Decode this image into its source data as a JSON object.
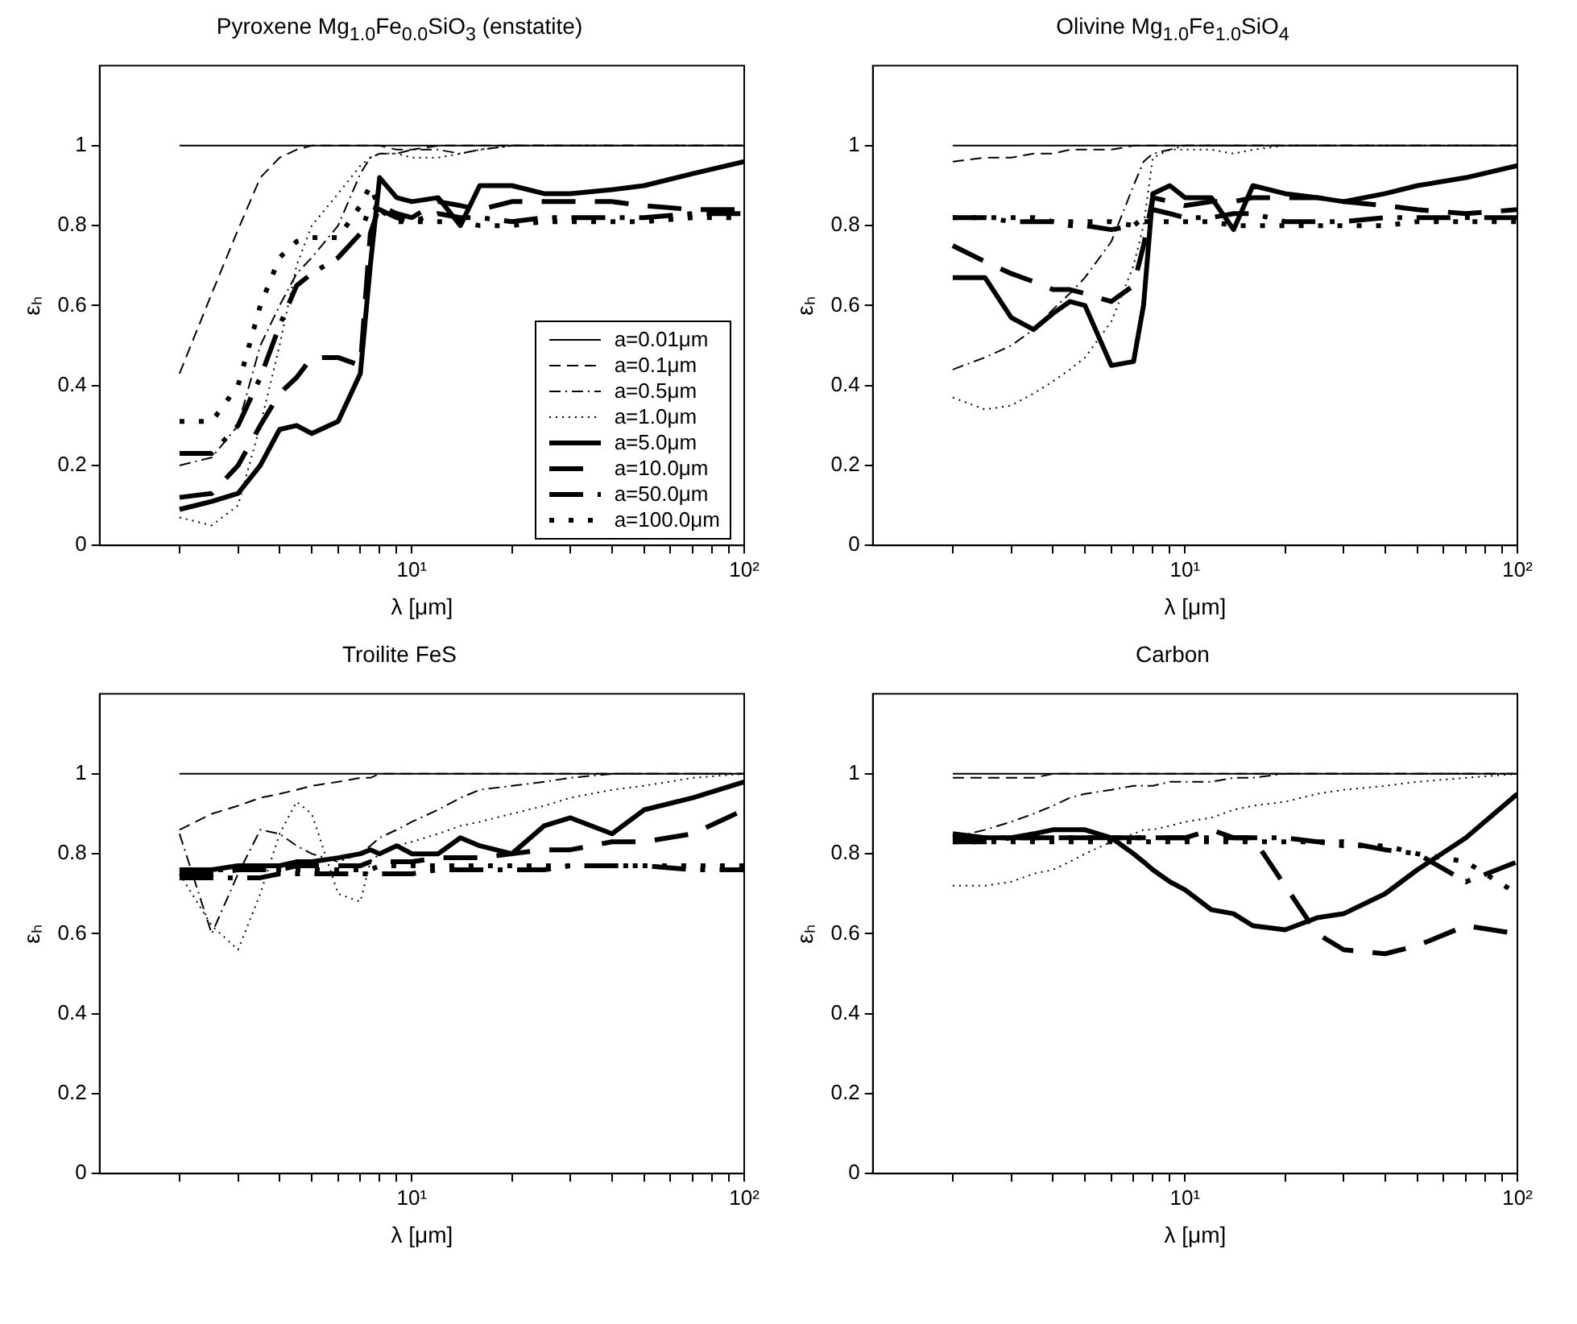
{
  "chart_data": [
    {
      "type": "line",
      "title": "Pyroxene Mg$_{1.0}$Fe$_{0.0}$SiO$_{3}$ (enstatite)",
      "xlabel": "λ [μm]",
      "ylabel": "εₕ",
      "log": "x",
      "grid": false,
      "legend": "bottom right",
      "x": [
        2,
        2.5,
        3,
        3.5,
        4,
        4.5,
        5,
        6,
        7,
        7.5,
        8,
        9,
        10,
        12,
        14,
        16,
        20,
        25,
        30,
        40,
        50,
        70,
        100
      ],
      "xlim": [
        1.15,
        100
      ],
      "xticks": [
        {
          "value": 2,
          "label": null
        },
        {
          "value": 3,
          "label": null
        },
        {
          "value": 4,
          "label": null
        },
        {
          "value": 5,
          "label": null
        },
        {
          "value": 6,
          "label": null
        },
        {
          "value": 7,
          "label": null
        },
        {
          "value": 8,
          "label": null
        },
        {
          "value": 9,
          "label": null
        },
        {
          "value": 10,
          "label": "10¹"
        },
        {
          "value": 20,
          "label": null
        },
        {
          "value": 30,
          "label": null
        },
        {
          "value": 40,
          "label": null
        },
        {
          "value": 50,
          "label": null
        },
        {
          "value": 60,
          "label": null
        },
        {
          "value": 70,
          "label": null
        },
        {
          "value": 80,
          "label": null
        },
        {
          "value": 90,
          "label": null
        },
        {
          "value": 100,
          "label": "10²"
        }
      ],
      "ylim": [
        0,
        1.2
      ],
      "yticks": [
        0,
        0.2,
        0.4,
        0.6,
        0.8,
        1
      ],
      "series": [
        {
          "name": "a=0.01μm",
          "color": "#000000",
          "line_style": "solid",
          "values": [
            1,
            1,
            1,
            1,
            1,
            1,
            1,
            1,
            1,
            1,
            1,
            1,
            1,
            1,
            1,
            1,
            1,
            1,
            1,
            1,
            1,
            1,
            1
          ]
        },
        {
          "name": "a=0.1μm",
          "color": "#000000",
          "line_style": "dashed",
          "values": [
            0.43,
            0.63,
            0.79,
            0.92,
            0.97,
            0.99,
            1,
            1,
            1,
            1,
            1,
            0.99,
            0.99,
            1,
            1,
            1,
            1,
            1,
            1,
            1,
            1,
            1,
            1
          ]
        },
        {
          "name": "a=0.5μm",
          "color": "#000000",
          "line_style": "dashdot",
          "values": [
            0.2,
            0.22,
            0.3,
            0.5,
            0.6,
            0.68,
            0.72,
            0.8,
            0.93,
            0.97,
            0.98,
            0.98,
            0.99,
            0.99,
            0.98,
            0.99,
            1,
            1,
            1,
            1,
            1,
            1,
            1
          ]
        },
        {
          "name": "a=1.0μm",
          "color": "#000000",
          "line_style": "dotted",
          "values": [
            0.07,
            0.05,
            0.1,
            0.3,
            0.5,
            0.7,
            0.8,
            0.88,
            0.95,
            0.97,
            0.98,
            0.98,
            0.97,
            0.97,
            0.98,
            0.99,
            1,
            1,
            1,
            1,
            1,
            1,
            1
          ]
        },
        {
          "name": "a=5.0μm",
          "color": "#000000",
          "line_style": "solid",
          "values": [
            0.09,
            0.11,
            0.13,
            0.2,
            0.29,
            0.3,
            0.28,
            0.31,
            0.43,
            0.7,
            0.92,
            0.87,
            0.86,
            0.87,
            0.8,
            0.9,
            0.9,
            0.88,
            0.88,
            0.89,
            0.9,
            0.93,
            0.96
          ]
        },
        {
          "name": "a=10.0μm",
          "color": "#000000",
          "line_style": "dashed",
          "values": [
            0.12,
            0.13,
            0.2,
            0.3,
            0.38,
            0.42,
            0.47,
            0.47,
            0.45,
            0.78,
            0.85,
            0.83,
            0.82,
            0.86,
            0.85,
            0.84,
            0.86,
            0.86,
            0.86,
            0.86,
            0.85,
            0.84,
            0.84
          ]
        },
        {
          "name": "a=50.0μm",
          "color": "#000000",
          "line_style": "dashdot",
          "values": [
            0.23,
            0.23,
            0.3,
            0.42,
            0.55,
            0.65,
            0.68,
            0.72,
            0.78,
            0.85,
            0.84,
            0.82,
            0.81,
            0.83,
            0.82,
            0.82,
            0.81,
            0.82,
            0.82,
            0.82,
            0.82,
            0.83,
            0.83
          ]
        },
        {
          "name": "a=100.0μm",
          "color": "#000000",
          "line_style": "dotted",
          "values": [
            0.31,
            0.31,
            0.4,
            0.6,
            0.72,
            0.76,
            0.77,
            0.77,
            0.85,
            0.9,
            0.84,
            0.81,
            0.81,
            0.81,
            0.81,
            0.8,
            0.8,
            0.81,
            0.81,
            0.81,
            0.81,
            0.82,
            0.82
          ]
        }
      ]
    },
    {
      "type": "line",
      "title": "Olivine Mg$_{1.0}$Fe$_{1.0}$SiO$_{4}$",
      "xlabel": "λ [μm]",
      "ylabel": "εₕ",
      "log": "x",
      "grid": false,
      "x": [
        2,
        2.5,
        3,
        3.5,
        4,
        4.5,
        5,
        6,
        7,
        7.5,
        8,
        9,
        10,
        12,
        14,
        16,
        20,
        25,
        30,
        40,
        50,
        70,
        100
      ],
      "xlim": [
        1.15,
        100
      ],
      "xticks": [
        {
          "value": 2,
          "label": null
        },
        {
          "value": 3,
          "label": null
        },
        {
          "value": 4,
          "label": null
        },
        {
          "value": 5,
          "label": null
        },
        {
          "value": 6,
          "label": null
        },
        {
          "value": 7,
          "label": null
        },
        {
          "value": 8,
          "label": null
        },
        {
          "value": 9,
          "label": null
        },
        {
          "value": 10,
          "label": "10¹"
        },
        {
          "value": 20,
          "label": null
        },
        {
          "value": 30,
          "label": null
        },
        {
          "value": 40,
          "label": null
        },
        {
          "value": 50,
          "label": null
        },
        {
          "value": 60,
          "label": null
        },
        {
          "value": 70,
          "label": null
        },
        {
          "value": 80,
          "label": null
        },
        {
          "value": 90,
          "label": null
        },
        {
          "value": 100,
          "label": "10²"
        }
      ],
      "ylim": [
        0,
        1.2
      ],
      "yticks": [
        0,
        0.2,
        0.4,
        0.6,
        0.8,
        1
      ],
      "series": [
        {
          "color": "#000000",
          "line_style": "solid",
          "values": [
            1,
            1,
            1,
            1,
            1,
            1,
            1,
            1,
            1,
            1,
            1,
            1,
            1,
            1,
            1,
            1,
            1,
            1,
            1,
            1,
            1,
            1,
            1
          ]
        },
        {
          "color": "#000000",
          "line_style": "dashed",
          "values": [
            0.96,
            0.97,
            0.97,
            0.98,
            0.98,
            0.99,
            0.99,
            0.99,
            1,
            1,
            1,
            1,
            1,
            1,
            1,
            1,
            1,
            1,
            1,
            1,
            1,
            1,
            1
          ]
        },
        {
          "color": "#000000",
          "line_style": "dashdot",
          "values": [
            0.44,
            0.47,
            0.5,
            0.54,
            0.59,
            0.63,
            0.67,
            0.76,
            0.9,
            0.96,
            0.98,
            0.99,
            1,
            1,
            1,
            1,
            1,
            1,
            1,
            1,
            1,
            1,
            1
          ]
        },
        {
          "color": "#000000",
          "line_style": "dotted",
          "values": [
            0.37,
            0.34,
            0.35,
            0.38,
            0.41,
            0.44,
            0.47,
            0.56,
            0.7,
            0.8,
            0.97,
            0.99,
            0.99,
            0.99,
            0.98,
            0.99,
            1,
            1,
            1,
            1,
            1,
            1,
            1
          ]
        },
        {
          "color": "#000000",
          "line_style": "solid",
          "values": [
            0.67,
            0.67,
            0.57,
            0.54,
            0.58,
            0.61,
            0.6,
            0.45,
            0.46,
            0.6,
            0.88,
            0.9,
            0.87,
            0.87,
            0.79,
            0.9,
            0.88,
            0.87,
            0.86,
            0.88,
            0.9,
            0.92,
            0.95
          ]
        },
        {
          "color": "#000000",
          "line_style": "dashed",
          "values": [
            0.75,
            0.71,
            0.68,
            0.66,
            0.64,
            0.64,
            0.63,
            0.61,
            0.65,
            0.75,
            0.87,
            0.86,
            0.85,
            0.86,
            0.86,
            0.87,
            0.87,
            0.87,
            0.86,
            0.85,
            0.84,
            0.83,
            0.84
          ]
        },
        {
          "color": "#000000",
          "line_style": "dashdot",
          "values": [
            0.82,
            0.82,
            0.81,
            0.81,
            0.81,
            0.8,
            0.8,
            0.79,
            0.8,
            0.82,
            0.84,
            0.83,
            0.82,
            0.82,
            0.83,
            0.83,
            0.81,
            0.81,
            0.81,
            0.82,
            0.82,
            0.82,
            0.82
          ]
        },
        {
          "color": "#000000",
          "line_style": "dotted",
          "values": [
            0.82,
            0.82,
            0.82,
            0.82,
            0.81,
            0.81,
            0.81,
            0.81,
            0.8,
            0.81,
            0.81,
            0.81,
            0.81,
            0.81,
            0.8,
            0.8,
            0.8,
            0.8,
            0.8,
            0.8,
            0.81,
            0.81,
            0.81
          ]
        }
      ]
    },
    {
      "type": "line",
      "title": "Troilite FeS",
      "xlabel": "λ [μm]",
      "ylabel": "εₕ",
      "log": "x",
      "grid": false,
      "x": [
        2,
        2.5,
        3,
        3.5,
        4,
        4.5,
        5,
        6,
        7,
        7.5,
        8,
        9,
        10,
        12,
        14,
        16,
        20,
        25,
        30,
        40,
        50,
        70,
        100
      ],
      "xlim": [
        1.15,
        100
      ],
      "xticks": [
        {
          "value": 2,
          "label": null
        },
        {
          "value": 3,
          "label": null
        },
        {
          "value": 4,
          "label": null
        },
        {
          "value": 5,
          "label": null
        },
        {
          "value": 6,
          "label": null
        },
        {
          "value": 7,
          "label": null
        },
        {
          "value": 8,
          "label": null
        },
        {
          "value": 9,
          "label": null
        },
        {
          "value": 10,
          "label": "10¹"
        },
        {
          "value": 20,
          "label": null
        },
        {
          "value": 30,
          "label": null
        },
        {
          "value": 40,
          "label": null
        },
        {
          "value": 50,
          "label": null
        },
        {
          "value": 60,
          "label": null
        },
        {
          "value": 70,
          "label": null
        },
        {
          "value": 80,
          "label": null
        },
        {
          "value": 90,
          "label": null
        },
        {
          "value": 100,
          "label": "10²"
        }
      ],
      "ylim": [
        0,
        1.2
      ],
      "yticks": [
        0,
        0.2,
        0.4,
        0.6,
        0.8,
        1
      ],
      "series": [
        {
          "color": "#000000",
          "line_style": "solid",
          "values": [
            1,
            1,
            1,
            1,
            1,
            1,
            1,
            1,
            1,
            1,
            1,
            1,
            1,
            1,
            1,
            1,
            1,
            1,
            1,
            1,
            1,
            1,
            1
          ]
        },
        {
          "color": "#000000",
          "line_style": "dashed",
          "values": [
            0.86,
            0.9,
            0.92,
            0.94,
            0.95,
            0.96,
            0.97,
            0.98,
            0.99,
            0.99,
            1,
            1,
            1,
            1,
            1,
            1,
            1,
            1,
            1,
            1,
            1,
            1,
            1
          ]
        },
        {
          "color": "#000000",
          "line_style": "dashdot",
          "values": [
            0.85,
            0.6,
            0.75,
            0.86,
            0.85,
            0.82,
            0.8,
            0.78,
            0.8,
            0.82,
            0.84,
            0.86,
            0.88,
            0.91,
            0.94,
            0.96,
            0.97,
            0.98,
            0.99,
            1,
            1,
            1,
            1
          ]
        },
        {
          "color": "#000000",
          "line_style": "dotted",
          "values": [
            0.75,
            0.62,
            0.56,
            0.7,
            0.85,
            0.93,
            0.9,
            0.7,
            0.68,
            0.78,
            0.8,
            0.82,
            0.83,
            0.85,
            0.87,
            0.88,
            0.9,
            0.92,
            0.94,
            0.96,
            0.97,
            0.99,
            1
          ]
        },
        {
          "color": "#000000",
          "line_style": "solid",
          "values": [
            0.76,
            0.76,
            0.77,
            0.77,
            0.77,
            0.78,
            0.78,
            0.79,
            0.8,
            0.81,
            0.8,
            0.82,
            0.8,
            0.8,
            0.84,
            0.82,
            0.8,
            0.87,
            0.89,
            0.85,
            0.91,
            0.94,
            0.98
          ]
        },
        {
          "color": "#000000",
          "line_style": "dashed",
          "values": [
            0.75,
            0.75,
            0.76,
            0.76,
            0.76,
            0.77,
            0.77,
            0.77,
            0.77,
            0.78,
            0.78,
            0.78,
            0.78,
            0.79,
            0.79,
            0.79,
            0.8,
            0.81,
            0.81,
            0.83,
            0.83,
            0.85,
            0.91
          ]
        },
        {
          "color": "#000000",
          "line_style": "dashdot",
          "values": [
            0.74,
            0.74,
            0.74,
            0.74,
            0.75,
            0.75,
            0.75,
            0.75,
            0.75,
            0.75,
            0.75,
            0.75,
            0.75,
            0.76,
            0.76,
            0.76,
            0.76,
            0.76,
            0.77,
            0.77,
            0.77,
            0.76,
            0.76
          ]
        },
        {
          "color": "#000000",
          "line_style": "dotted",
          "values": [
            0.76,
            0.76,
            0.76,
            0.76,
            0.76,
            0.76,
            0.76,
            0.76,
            0.76,
            0.76,
            0.77,
            0.77,
            0.77,
            0.77,
            0.77,
            0.77,
            0.77,
            0.77,
            0.77,
            0.77,
            0.77,
            0.77,
            0.77
          ]
        }
      ]
    },
    {
      "type": "line",
      "title": "Carbon",
      "xlabel": "λ [μm]",
      "ylabel": "εₕ",
      "log": "x",
      "grid": false,
      "x": [
        2,
        2.5,
        3,
        3.5,
        4,
        4.5,
        5,
        6,
        7,
        7.5,
        8,
        9,
        10,
        12,
        14,
        16,
        20,
        25,
        30,
        40,
        50,
        70,
        100
      ],
      "xlim": [
        1.15,
        100
      ],
      "xticks": [
        {
          "value": 2,
          "label": null
        },
        {
          "value": 3,
          "label": null
        },
        {
          "value": 4,
          "label": null
        },
        {
          "value": 5,
          "label": null
        },
        {
          "value": 6,
          "label": null
        },
        {
          "value": 7,
          "label": null
        },
        {
          "value": 8,
          "label": null
        },
        {
          "value": 9,
          "label": null
        },
        {
          "value": 10,
          "label": "10¹"
        },
        {
          "value": 20,
          "label": null
        },
        {
          "value": 30,
          "label": null
        },
        {
          "value": 40,
          "label": null
        },
        {
          "value": 50,
          "label": null
        },
        {
          "value": 60,
          "label": null
        },
        {
          "value": 70,
          "label": null
        },
        {
          "value": 80,
          "label": null
        },
        {
          "value": 90,
          "label": null
        },
        {
          "value": 100,
          "label": "10²"
        }
      ],
      "ylim": [
        0,
        1.2
      ],
      "yticks": [
        0,
        0.2,
        0.4,
        0.6,
        0.8,
        1
      ],
      "series": [
        {
          "color": "#000000",
          "line_style": "solid",
          "values": [
            1,
            1,
            1,
            1,
            1,
            1,
            1,
            1,
            1,
            1,
            1,
            1,
            1,
            1,
            1,
            1,
            1,
            1,
            1,
            1,
            1,
            1,
            1
          ]
        },
        {
          "color": "#000000",
          "line_style": "dashed",
          "values": [
            0.99,
            0.99,
            0.99,
            0.99,
            1,
            1,
            1,
            1,
            1,
            1,
            1,
            1,
            1,
            1,
            1,
            1,
            1,
            1,
            1,
            1,
            1,
            1,
            1
          ]
        },
        {
          "color": "#000000",
          "line_style": "dashdot",
          "values": [
            0.84,
            0.86,
            0.88,
            0.9,
            0.92,
            0.94,
            0.95,
            0.96,
            0.97,
            0.97,
            0.97,
            0.98,
            0.98,
            0.98,
            0.99,
            0.99,
            1,
            1,
            1,
            1,
            1,
            1,
            1
          ]
        },
        {
          "color": "#000000",
          "line_style": "dotted",
          "values": [
            0.72,
            0.72,
            0.73,
            0.75,
            0.76,
            0.78,
            0.8,
            0.83,
            0.85,
            0.86,
            0.86,
            0.87,
            0.88,
            0.89,
            0.91,
            0.92,
            0.93,
            0.95,
            0.96,
            0.97,
            0.98,
            0.99,
            1
          ]
        },
        {
          "color": "#000000",
          "line_style": "solid",
          "values": [
            0.85,
            0.84,
            0.84,
            0.85,
            0.86,
            0.86,
            0.86,
            0.84,
            0.8,
            0.78,
            0.76,
            0.73,
            0.71,
            0.66,
            0.65,
            0.62,
            0.61,
            0.64,
            0.65,
            0.7,
            0.76,
            0.84,
            0.95
          ]
        },
        {
          "color": "#000000",
          "line_style": "dashed",
          "values": [
            0.83,
            0.83,
            0.84,
            0.84,
            0.84,
            0.84,
            0.84,
            0.84,
            0.84,
            0.84,
            0.84,
            0.84,
            0.84,
            0.86,
            0.84,
            0.84,
            0.72,
            0.6,
            0.56,
            0.55,
            0.57,
            0.62,
            0.6
          ]
        },
        {
          "color": "#000000",
          "line_style": "dashdot",
          "values": [
            0.84,
            0.84,
            0.84,
            0.84,
            0.84,
            0.84,
            0.84,
            0.84,
            0.84,
            0.84,
            0.84,
            0.84,
            0.84,
            0.84,
            0.84,
            0.84,
            0.84,
            0.83,
            0.83,
            0.81,
            0.8,
            0.73,
            0.78
          ]
        },
        {
          "color": "#000000",
          "line_style": "dotted",
          "values": [
            0.83,
            0.83,
            0.83,
            0.83,
            0.83,
            0.83,
            0.83,
            0.83,
            0.83,
            0.83,
            0.83,
            0.83,
            0.83,
            0.83,
            0.83,
            0.83,
            0.83,
            0.83,
            0.82,
            0.82,
            0.8,
            0.78,
            0.7
          ]
        }
      ]
    }
  ]
}
